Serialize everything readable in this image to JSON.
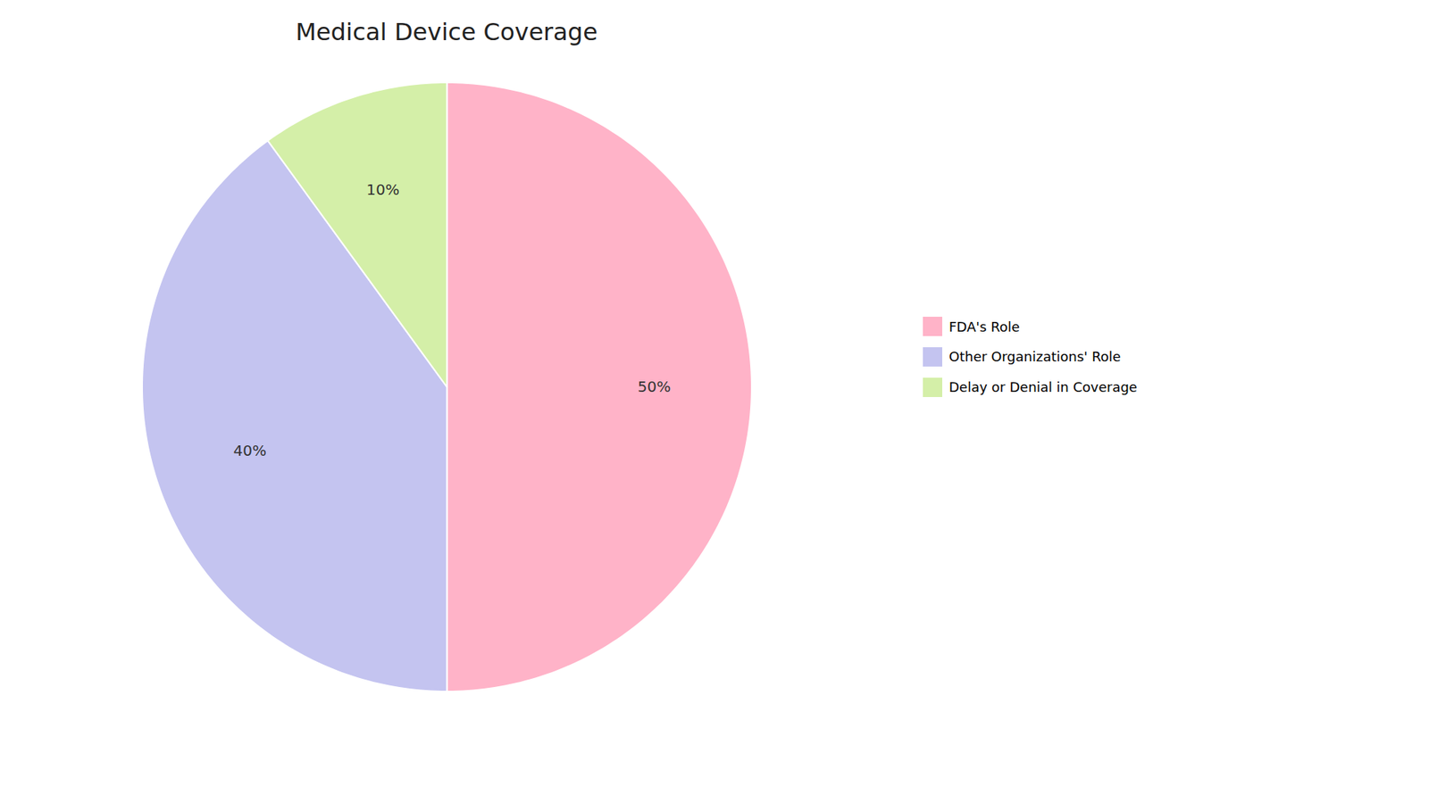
{
  "chart_data": {
    "type": "pie",
    "title": "Medical Device Coverage",
    "categories": [
      "FDA's Role",
      "Other Organizations' Role",
      "Delay or Denial in Coverage"
    ],
    "values": [
      50,
      40,
      10
    ],
    "value_labels": [
      "50%",
      "40%",
      "10%"
    ],
    "colors": [
      "#FFB3C8",
      "#C4C4F0",
      "#D4EFA8"
    ],
    "data_labels": true,
    "legend": "right"
  }
}
